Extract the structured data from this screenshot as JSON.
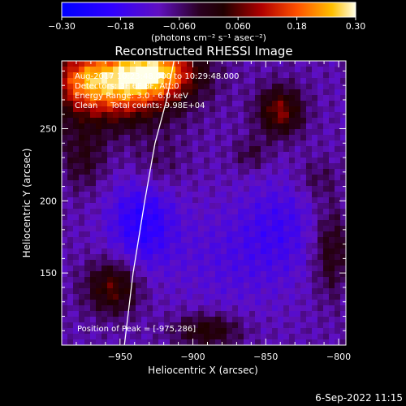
{
  "chart_data": {
    "type": "heatmap",
    "title": "Reconstructed RHESSI Image",
    "xlabel": "Heliocentric X (arcsec)",
    "ylabel": "Heliocentric Y (arcsec)",
    "xlim": [
      -990,
      -795
    ],
    "ylim": [
      100,
      297
    ],
    "x_ticks": [
      -950,
      -900,
      -850,
      -800
    ],
    "x_tick_labels": [
      "−950",
      "−900",
      "−850",
      "−800"
    ],
    "y_ticks": [
      150,
      200,
      250
    ],
    "y_tick_labels": [
      "150",
      "200",
      "250"
    ],
    "colorbar": {
      "min": -0.3,
      "max": 0.3,
      "ticks": [
        -0.3,
        -0.18,
        -0.06,
        0.06,
        0.18,
        0.3
      ],
      "tick_labels": [
        "−0.30",
        "−0.18",
        "−0.060",
        "0.060",
        "0.18",
        "0.30"
      ],
      "unit_label": "(photons cm⁻² s⁻¹ asec⁻²)"
    },
    "annotations": [
      "Aug-2017 10:23:48.000 to 10:29:48.000",
      "Detectors: 3F 6F 8F, Att:0",
      "Energy Range: 3.0 - 6.0 keV",
      "Clean     Total counts: 9.98E+04"
    ],
    "peak_label": "Position of Peak = [-975,286]",
    "peak": [
      -975,
      286
    ],
    "limb_curve": [
      [
        -947,
        100
      ],
      [
        -941,
        150
      ],
      [
        -933,
        200
      ],
      [
        -926,
        240
      ],
      [
        -918,
        270
      ],
      [
        -913,
        297
      ]
    ],
    "sources": [
      {
        "x": -955,
        "y": 280,
        "sx": 30,
        "sy": 18,
        "amp": 0.3
      },
      {
        "x": -925,
        "y": 290,
        "sx": 20,
        "sy": 12,
        "amp": 0.24
      },
      {
        "x": -975,
        "y": 286,
        "sx": 12,
        "sy": 12,
        "amp": 0.08
      },
      {
        "x": -840,
        "y": 262,
        "sx": 11,
        "sy": 12,
        "amp": 0.17
      },
      {
        "x": -860,
        "y": 232,
        "sx": 9,
        "sy": 8,
        "amp": 0.06
      },
      {
        "x": -955,
        "y": 140,
        "sx": 13,
        "sy": 13,
        "amp": 0.15
      },
      {
        "x": -975,
        "y": 230,
        "sx": 11,
        "sy": 16,
        "amp": 0.08
      },
      {
        "x": -925,
        "y": 225,
        "sx": 14,
        "sy": 14,
        "amp": 0.05
      },
      {
        "x": -890,
        "y": 110,
        "sx": 16,
        "sy": 8,
        "amp": 0.12
      },
      {
        "x": -805,
        "y": 165,
        "sx": 9,
        "sy": 22,
        "amp": 0.1
      },
      {
        "x": -815,
        "y": 215,
        "sx": 10,
        "sy": 10,
        "amp": 0.05
      },
      {
        "x": -935,
        "y": 185,
        "sx": 16,
        "sy": 22,
        "amp": -0.12
      },
      {
        "x": -870,
        "y": 160,
        "sx": 32,
        "sy": 26,
        "amp": -0.05
      },
      {
        "x": -840,
        "y": 185,
        "sx": 18,
        "sy": 22,
        "amp": -0.06
      }
    ],
    "background": -0.09
  },
  "timestamp": "6-Sep-2022 11:15"
}
